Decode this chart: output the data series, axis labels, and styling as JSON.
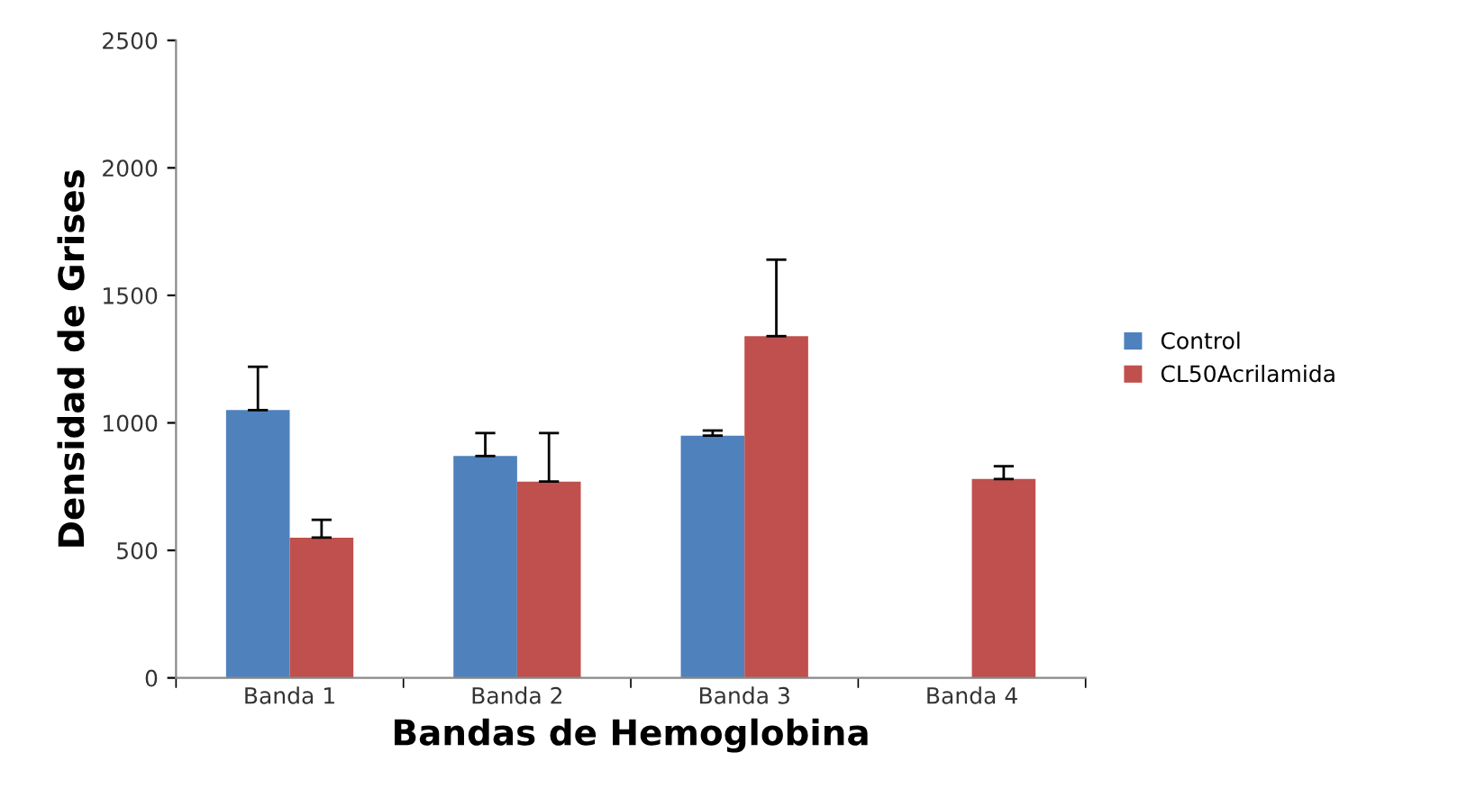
{
  "chart_data": {
    "type": "bar",
    "xlabel": "Bandas de Hemoglobina",
    "ylabel": "Densidad de Grises",
    "categories": [
      "Banda 1",
      "Banda 2",
      "Banda 3",
      "Banda 4"
    ],
    "series": [
      {
        "name": "Control",
        "color": "#4f81bd",
        "values": [
          1050,
          870,
          950,
          null
        ],
        "errors": [
          [
            1050,
            1220
          ],
          [
            870,
            960
          ],
          [
            950,
            970
          ],
          null
        ]
      },
      {
        "name": "CL50Acrilamida",
        "color": "#c0504d",
        "values": [
          550,
          770,
          1340,
          780
        ],
        "errors": [
          [
            550,
            620
          ],
          [
            770,
            960
          ],
          [
            1340,
            1640
          ],
          [
            780,
            830
          ]
        ]
      }
    ],
    "ylim": [
      0,
      2500
    ],
    "yticks": [
      0,
      500,
      1000,
      1500,
      2000,
      2500
    ],
    "grid": false,
    "legend": "right"
  }
}
